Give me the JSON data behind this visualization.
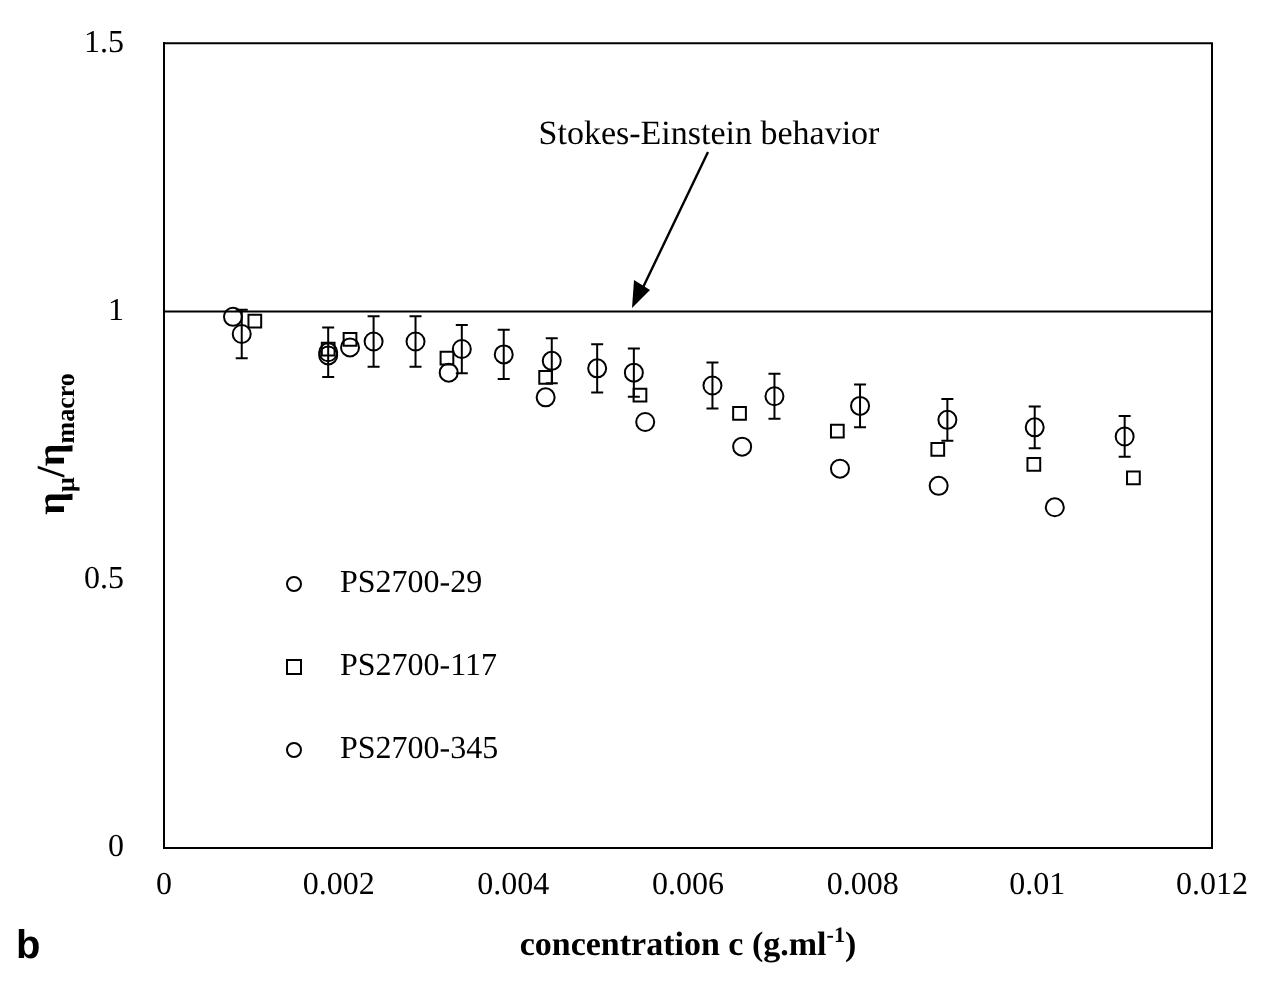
{
  "chart_data": {
    "type": "scatter",
    "xlabel": "concentration c (g.ml$^{-1}$)",
    "ylabel": "η$_{μ}$/η$_{macro}$",
    "xlim": [
      0,
      0.012
    ],
    "xticks": [
      0,
      0.002,
      0.004,
      0.006,
      0.008,
      0.01,
      0.012
    ],
    "ylim": [
      0,
      1.5
    ],
    "yticks": [
      0,
      0.5,
      1,
      1.5
    ],
    "grid": false,
    "legend": "bottom left",
    "ref_lines": [
      {
        "axis": "y",
        "value": 1,
        "label": "Stokes-Einstein behavior",
        "color": "#000000"
      }
    ],
    "annotations": [
      "b"
    ],
    "series": [
      {
        "name": "PS2700-29",
        "color": "#000000",
        "marker": "circle",
        "x": [
          0.00089,
          0.00188,
          0.0024,
          0.00288,
          0.00341,
          0.00389,
          0.00444,
          0.00496,
          0.00538,
          0.00628,
          0.00699,
          0.00797,
          0.00897,
          0.00997,
          0.011
        ],
        "values": [
          0.958,
          0.924,
          0.944,
          0.944,
          0.93,
          0.92,
          0.908,
          0.894,
          0.886,
          0.862,
          0.842,
          0.824,
          0.798,
          0.784,
          0.767
        ],
        "errors": [
          0.045,
          0.046,
          0.047,
          0.047,
          0.045,
          0.046,
          0.042,
          0.045,
          0.045,
          0.043,
          0.042,
          0.04,
          0.039,
          0.039,
          0.038
        ]
      },
      {
        "name": "PS2700-117",
        "color": "#000000",
        "marker": "square",
        "x": [
          0.00104,
          0.00188,
          0.00213,
          0.00324,
          0.00437,
          0.00545,
          0.00659,
          0.00771,
          0.00886,
          0.00996,
          0.0111
        ],
        "values": [
          0.982,
          0.93,
          0.948,
          0.913,
          0.877,
          0.844,
          0.81,
          0.777,
          0.743,
          0.715,
          0.69
        ]
      },
      {
        "name": "PS2700-345",
        "color": "#000000",
        "marker": "circle",
        "x": [
          0.00079,
          0.00188,
          0.00213,
          0.00326,
          0.00437,
          0.00551,
          0.00662,
          0.00774,
          0.00887,
          0.0102
        ],
        "values": [
          0.99,
          0.918,
          0.933,
          0.886,
          0.84,
          0.794,
          0.748,
          0.707,
          0.675,
          0.635
        ]
      }
    ]
  }
}
